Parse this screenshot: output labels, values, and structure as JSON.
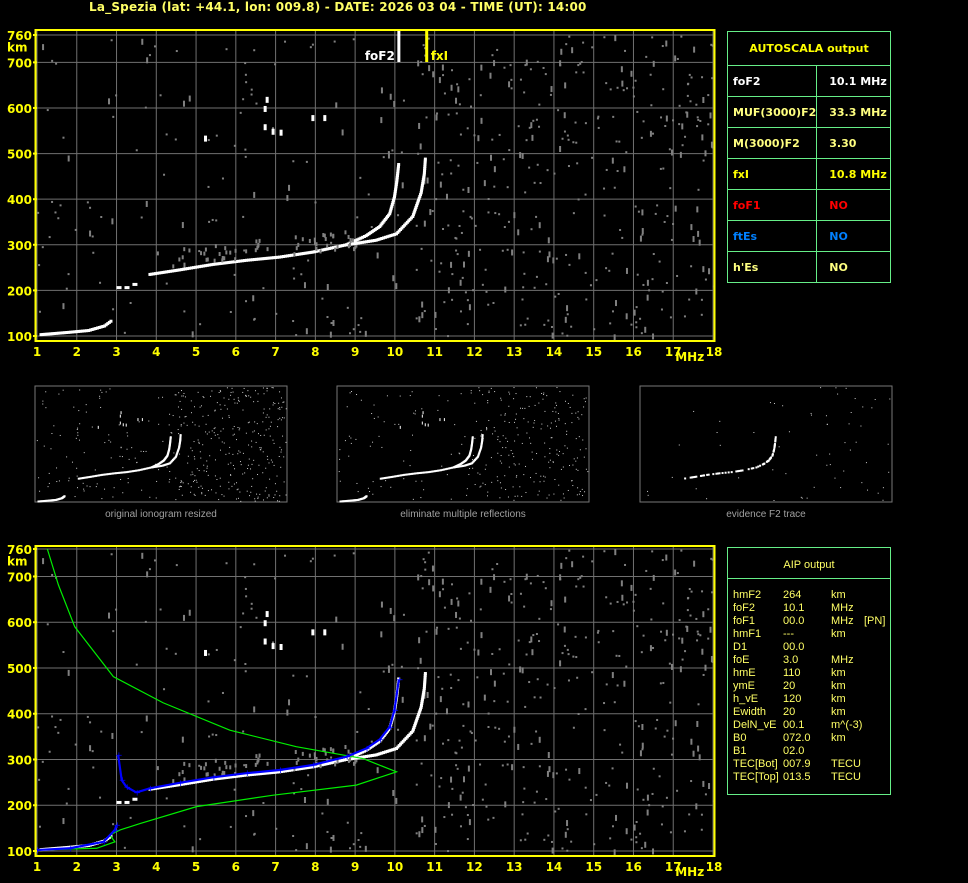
{
  "title": "La_Spezia (lat: +44.1, lon: 009.8) - DATE: 2026 03 04 - TIME (UT): 14:00",
  "colors": {
    "axis": "#ffff00",
    "grid": "#707070",
    "table_border": "#66ee88",
    "profile": "#00ee00",
    "aip_trace": "#0000ff",
    "trace": "#ffffff",
    "noise": "#808080"
  },
  "markers": {
    "foF2_label": "foF2",
    "fxI_label": "fxI"
  },
  "thumbnails": [
    {
      "caption": "original ionogram resized"
    },
    {
      "caption": "eliminate multiple reflections"
    },
    {
      "caption": "evidence F2 trace"
    }
  ],
  "autoscala": {
    "title": "AUTOSCALA output",
    "rows": [
      {
        "label": "foF2",
        "value": "10.1 MHz",
        "color": "#ffffff"
      },
      {
        "label": "MUF(3000)F2",
        "value": "33.3 MHz",
        "color": "#ffff80"
      },
      {
        "label": "M(3000)F2",
        "value": "3.30",
        "color": "#ffff80"
      },
      {
        "label": "fxI",
        "value": "10.8 MHz",
        "color": "#ffff00"
      },
      {
        "label": "foF1",
        "value": "NO",
        "color": "#ff0000"
      },
      {
        "label": "ftEs",
        "value": "NO",
        "color": "#0080ff"
      },
      {
        "label": "h'Es",
        "value": "NO",
        "color": "#ffff80"
      }
    ]
  },
  "aip": {
    "title": "AIP output",
    "rows": [
      {
        "name": "hmF2",
        "value": "264",
        "unit": "km",
        "extra": ""
      },
      {
        "name": "foF2",
        "value": "10.1",
        "unit": "MHz",
        "extra": ""
      },
      {
        "name": "foF1",
        "value": "00.0",
        "unit": "MHz",
        "extra": "[PN]"
      },
      {
        "name": "hmF1",
        "value": "---",
        "unit": "km",
        "extra": ""
      },
      {
        "name": "D1",
        "value": "00.0",
        "unit": "",
        "extra": ""
      },
      {
        "name": "foE",
        "value": "3.0",
        "unit": "MHz",
        "extra": ""
      },
      {
        "name": "hmE",
        "value": "110",
        "unit": "km",
        "extra": ""
      },
      {
        "name": "ymE",
        "value": "20",
        "unit": "km",
        "extra": ""
      },
      {
        "name": "h_vE",
        "value": "120",
        "unit": "km",
        "extra": ""
      },
      {
        "name": "Ewidth",
        "value": "20",
        "unit": "km",
        "extra": ""
      },
      {
        "name": "DelN_vE",
        "value": "00.1",
        "unit": "m^(-3)",
        "extra": ""
      },
      {
        "name": "B0",
        "value": "072.0",
        "unit": "km",
        "extra": ""
      },
      {
        "name": "B1",
        "value": "02.0",
        "unit": "",
        "extra": ""
      },
      {
        "name": "TEC[Bot]",
        "value": "007.9",
        "unit": "TECU",
        "extra": ""
      },
      {
        "name": "TEC[Top]",
        "value": "013.5",
        "unit": "TECU",
        "extra": ""
      }
    ]
  },
  "chart_data": {
    "type": "scatter",
    "xlabel": "MHz",
    "ylabel": "km",
    "xlim": [
      1,
      18
    ],
    "ylim": [
      100,
      760
    ],
    "xticks": [
      "1",
      "2",
      "3",
      "4",
      "5",
      "6",
      "7",
      "8",
      "9",
      "10",
      "11",
      "12",
      "13",
      "14",
      "15",
      "16",
      "17",
      "18"
    ],
    "yticks": [
      "100",
      "200",
      "300",
      "400",
      "500",
      "600",
      "700",
      "760"
    ],
    "grid": true,
    "markers": {
      "foF2": 10.1,
      "fxI": 10.8
    },
    "traces": {
      "ordinary": [
        [
          3.84,
          235
        ],
        [
          4.59,
          245
        ],
        [
          5.43,
          257
        ],
        [
          6.27,
          266
        ],
        [
          7.1,
          273
        ],
        [
          7.94,
          284
        ],
        [
          8.78,
          300
        ],
        [
          9.28,
          320
        ],
        [
          9.62,
          340
        ],
        [
          9.87,
          368
        ],
        [
          9.99,
          405
        ],
        [
          10.05,
          440
        ],
        [
          10.1,
          480
        ]
      ],
      "extraordinary": [
        [
          8.8,
          300
        ],
        [
          9.53,
          310
        ],
        [
          10.04,
          324
        ],
        [
          10.45,
          362
        ],
        [
          10.66,
          414
        ],
        [
          10.74,
          455
        ],
        [
          10.77,
          492
        ]
      ],
      "E_trace": [
        [
          1.1,
          103
        ],
        [
          1.8,
          108
        ],
        [
          2.3,
          112
        ],
        [
          2.7,
          122
        ],
        [
          2.9,
          135
        ]
      ],
      "Es_blob": [
        [
          3.0,
          205
        ],
        [
          3.2,
          205
        ],
        [
          3.4,
          212
        ]
      ],
      "spread": [
        [
          6.7,
          560
        ],
        [
          6.7,
          600
        ],
        [
          6.75,
          620
        ],
        [
          6.9,
          550
        ],
        [
          7.1,
          548
        ],
        [
          5.2,
          535
        ],
        [
          7.9,
          580
        ],
        [
          8.2,
          580
        ]
      ]
    },
    "aip_trace": [
      [
        1.0,
        102
      ],
      [
        1.83,
        106
      ],
      [
        2.67,
        120
      ],
      [
        2.96,
        146
      ],
      [
        3.0,
        157
      ],
      [
        3.04,
        310
      ],
      [
        3.13,
        255
      ],
      [
        3.25,
        240
      ],
      [
        3.5,
        228
      ],
      [
        3.84,
        237
      ],
      [
        4.59,
        249
      ],
      [
        5.43,
        261
      ],
      [
        6.27,
        270
      ],
      [
        7.1,
        277
      ],
      [
        7.94,
        288
      ],
      [
        8.78,
        306
      ],
      [
        9.28,
        324
      ],
      [
        9.62,
        344
      ],
      [
        9.87,
        371
      ],
      [
        9.99,
        408
      ],
      [
        10.1,
        475
      ]
    ],
    "profile": [
      [
        1.0,
        102
      ],
      [
        2.5,
        106
      ],
      [
        2.96,
        120
      ],
      [
        2.83,
        135
      ],
      [
        3.09,
        146
      ],
      [
        3.59,
        160
      ],
      [
        5.01,
        197
      ],
      [
        6.94,
        222
      ],
      [
        9.03,
        244
      ],
      [
        10.04,
        273
      ],
      [
        9.2,
        302
      ],
      [
        7.52,
        328
      ],
      [
        5.85,
        364
      ],
      [
        4.17,
        424
      ],
      [
        2.92,
        481
      ],
      [
        1.95,
        590
      ],
      [
        1.54,
        681
      ],
      [
        1.26,
        760
      ]
    ]
  }
}
